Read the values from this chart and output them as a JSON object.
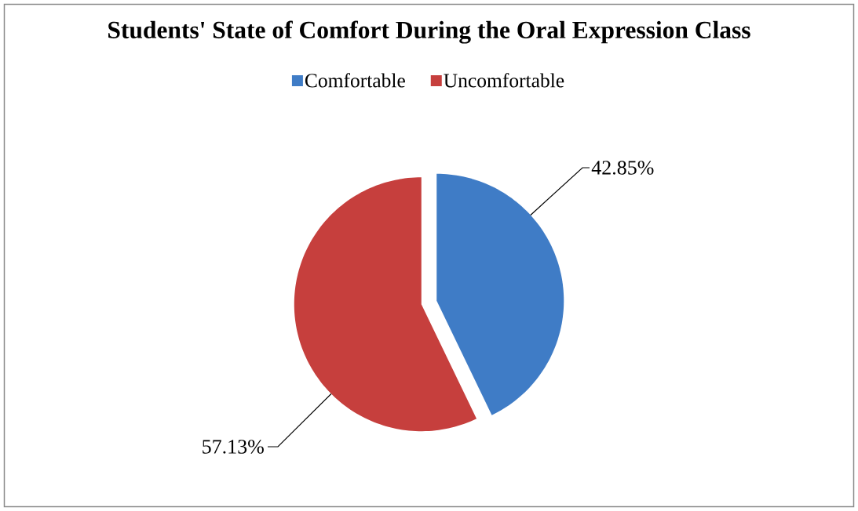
{
  "chart_data": {
    "type": "pie",
    "title": "Students' State of Comfort  During the Oral Expression Class",
    "categories": [
      "Comfortable",
      "Uncomfortable"
    ],
    "values": [
      42.85,
      57.13
    ],
    "colors": [
      "#3f7cc6",
      "#c63f3d"
    ],
    "value_labels": [
      "42.85%",
      "57.13%"
    ],
    "legend": "top"
  }
}
